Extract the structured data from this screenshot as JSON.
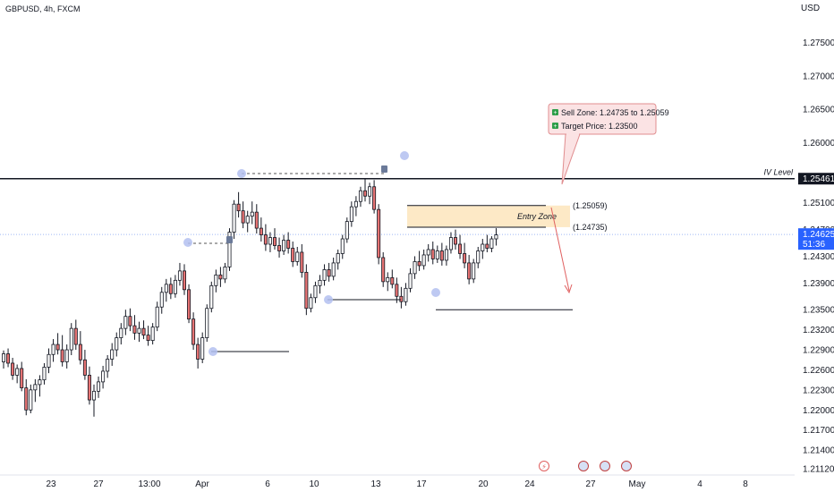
{
  "header": {
    "symbol_title": "GBPUSD, 4h, FXCM",
    "currency": "USD"
  },
  "price_axis": {
    "ticks": [
      "1.27500",
      "1.27000",
      "1.26500",
      "1.26000",
      "1.25100",
      "1.24700",
      "1.24300",
      "1.23900",
      "1.23500",
      "1.23200",
      "1.22900",
      "1.22600",
      "1.22300",
      "1.22000",
      "1.21700",
      "1.21400",
      "1.21120"
    ],
    "tick_values": [
      1.275,
      1.27,
      1.265,
      1.26,
      1.251,
      1.247,
      1.243,
      1.239,
      1.235,
      1.232,
      1.229,
      1.226,
      1.223,
      1.22,
      1.217,
      1.214,
      1.2112
    ]
  },
  "time_axis": {
    "ticks": [
      "23",
      "27",
      "13:00",
      "Apr",
      "6",
      "10",
      "13",
      "17",
      "20",
      "24",
      "27",
      "May",
      "4",
      "8"
    ]
  },
  "levels": {
    "iv_level": {
      "label": "IV Level",
      "price_label": "1.25461",
      "value": 1.25461
    },
    "current": {
      "price_label": "1.24625",
      "countdown": "51:36",
      "value": 1.24625
    },
    "zone_top_label": "(1.25059)",
    "zone_bottom_label": "(1.24735)",
    "zone_top": 1.25059,
    "zone_bottom": 1.24735,
    "entry_zone_label": "Entry Zone",
    "target": 1.235
  },
  "callout": {
    "line1": "Sell Zone: 1.24735 to 1.25059",
    "line2": "Target Price: 1.23500"
  },
  "colors": {
    "up": "#ffffff",
    "down": "#e57373",
    "wick": "#131722",
    "zone_fill": "#fde9c6",
    "callout_fill": "#fbe3e4",
    "callout_border": "#e08d8f",
    "current_badge": "#2962ff",
    "iv_badge": "#131722",
    "pivot_marker": "#b3bff0"
  },
  "chart_data": {
    "type": "candlestick",
    "symbol": "GBPUSD",
    "timeframe": "4h",
    "y_range": [
      1.2112,
      1.2776
    ],
    "ohlc": [
      [
        1.2272,
        1.2289,
        1.2262,
        1.2284
      ],
      [
        1.2284,
        1.2292,
        1.2264,
        1.227
      ],
      [
        1.227,
        1.2278,
        1.2245,
        1.2252
      ],
      [
        1.2252,
        1.2268,
        1.224,
        1.2262
      ],
      [
        1.2262,
        1.2272,
        1.2228,
        1.2233
      ],
      [
        1.2233,
        1.2246,
        1.2192,
        1.22
      ],
      [
        1.22,
        1.2238,
        1.2195,
        1.223
      ],
      [
        1.223,
        1.2246,
        1.2212,
        1.2238
      ],
      [
        1.2238,
        1.2252,
        1.222,
        1.2245
      ],
      [
        1.2245,
        1.227,
        1.2238,
        1.2264
      ],
      [
        1.2264,
        1.2292,
        1.2255,
        1.2283
      ],
      [
        1.2283,
        1.2306,
        1.2272,
        1.2298
      ],
      [
        1.2298,
        1.2315,
        1.2283,
        1.229
      ],
      [
        1.229,
        1.2312,
        1.2265,
        1.2272
      ],
      [
        1.2272,
        1.2298,
        1.2262,
        1.229
      ],
      [
        1.229,
        1.233,
        1.2282,
        1.2322
      ],
      [
        1.2322,
        1.2335,
        1.229,
        1.2298
      ],
      [
        1.2298,
        1.2318,
        1.2268,
        1.2275
      ],
      [
        1.2275,
        1.229,
        1.2245,
        1.2252
      ],
      [
        1.2252,
        1.2265,
        1.2208,
        1.2215
      ],
      [
        1.2215,
        1.2238,
        1.219,
        1.2228
      ],
      [
        1.2228,
        1.225,
        1.2218,
        1.2242
      ],
      [
        1.2242,
        1.2266,
        1.2232,
        1.2258
      ],
      [
        1.2258,
        1.2282,
        1.2248,
        1.2276
      ],
      [
        1.2276,
        1.23,
        1.2266,
        1.229
      ],
      [
        1.229,
        1.2316,
        1.228,
        1.2308
      ],
      [
        1.2308,
        1.233,
        1.2298,
        1.2322
      ],
      [
        1.2322,
        1.235,
        1.2312,
        1.234
      ],
      [
        1.234,
        1.2352,
        1.2318,
        1.2326
      ],
      [
        1.2326,
        1.2342,
        1.2305,
        1.2315
      ],
      [
        1.2315,
        1.2332,
        1.2302,
        1.2322
      ],
      [
        1.2322,
        1.2334,
        1.2306,
        1.2312
      ],
      [
        1.2312,
        1.2326,
        1.2296,
        1.2304
      ],
      [
        1.2304,
        1.233,
        1.2298,
        1.2324
      ],
      [
        1.2324,
        1.2362,
        1.2318,
        1.2354
      ],
      [
        1.2354,
        1.2384,
        1.2344,
        1.2376
      ],
      [
        1.2376,
        1.2396,
        1.2362,
        1.2388
      ],
      [
        1.2388,
        1.2398,
        1.2366,
        1.2374
      ],
      [
        1.2374,
        1.2402,
        1.2368,
        1.2394
      ],
      [
        1.2394,
        1.242,
        1.2386,
        1.2408
      ],
      [
        1.2408,
        1.2418,
        1.2372,
        1.238
      ],
      [
        1.238,
        1.2388,
        1.233,
        1.2336
      ],
      [
        1.2336,
        1.2346,
        1.229,
        1.2298
      ],
      [
        1.2298,
        1.2308,
        1.2262,
        1.2276
      ],
      [
        1.2276,
        1.2316,
        1.227,
        1.2308
      ],
      [
        1.2308,
        1.2358,
        1.2302,
        1.2352
      ],
      [
        1.2352,
        1.2392,
        1.2346,
        1.2386
      ],
      [
        1.2386,
        1.241,
        1.2376,
        1.2402
      ],
      [
        1.2402,
        1.2414,
        1.2384,
        1.2396
      ],
      [
        1.2396,
        1.242,
        1.239,
        1.2414
      ],
      [
        1.2414,
        1.2472,
        1.2408,
        1.2466
      ],
      [
        1.2466,
        1.2514,
        1.2456,
        1.2508
      ],
      [
        1.2508,
        1.2526,
        1.2488,
        1.2498
      ],
      [
        1.2498,
        1.2512,
        1.2472,
        1.248
      ],
      [
        1.248,
        1.2498,
        1.2466,
        1.249
      ],
      [
        1.249,
        1.2512,
        1.2478,
        1.2496
      ],
      [
        1.2496,
        1.2508,
        1.2464,
        1.2472
      ],
      [
        1.2472,
        1.2488,
        1.2452,
        1.2462
      ],
      [
        1.2462,
        1.2478,
        1.2438,
        1.2448
      ],
      [
        1.2448,
        1.2466,
        1.2436,
        1.2458
      ],
      [
        1.2458,
        1.2472,
        1.244,
        1.2446
      ],
      [
        1.2446,
        1.2458,
        1.2428,
        1.2438
      ],
      [
        1.2438,
        1.2462,
        1.2432,
        1.2454
      ],
      [
        1.2454,
        1.2466,
        1.2434,
        1.2442
      ],
      [
        1.2442,
        1.2452,
        1.2414,
        1.2422
      ],
      [
        1.2422,
        1.2444,
        1.2416,
        1.2436
      ],
      [
        1.2436,
        1.2448,
        1.2398,
        1.2406
      ],
      [
        1.2406,
        1.2418,
        1.2342,
        1.2352
      ],
      [
        1.2352,
        1.2374,
        1.2346,
        1.2368
      ],
      [
        1.2368,
        1.2392,
        1.236,
        1.2386
      ],
      [
        1.2386,
        1.2402,
        1.2374,
        1.2394
      ],
      [
        1.2394,
        1.2418,
        1.2386,
        1.241
      ],
      [
        1.241,
        1.242,
        1.2392,
        1.24
      ],
      [
        1.24,
        1.2428,
        1.2394,
        1.242
      ],
      [
        1.242,
        1.244,
        1.241,
        1.2434
      ],
      [
        1.2434,
        1.2462,
        1.2426,
        1.2456
      ],
      [
        1.2456,
        1.2488,
        1.245,
        1.2482
      ],
      [
        1.2482,
        1.2512,
        1.2474,
        1.2504
      ],
      [
        1.2504,
        1.252,
        1.249,
        1.2512
      ],
      [
        1.2512,
        1.2534,
        1.2504,
        1.2528
      ],
      [
        1.2528,
        1.2546,
        1.2512,
        1.252
      ],
      [
        1.252,
        1.254,
        1.2508,
        1.2534
      ],
      [
        1.2534,
        1.2544,
        1.2494,
        1.25
      ],
      [
        1.25,
        1.2508,
        1.2418,
        1.2428
      ],
      [
        1.2428,
        1.2436,
        1.2384,
        1.2392
      ],
      [
        1.2392,
        1.2406,
        1.2378,
        1.2398
      ],
      [
        1.2398,
        1.241,
        1.2382,
        1.2388
      ],
      [
        1.2388,
        1.2398,
        1.236,
        1.237
      ],
      [
        1.237,
        1.2384,
        1.2352,
        1.2362
      ],
      [
        1.2362,
        1.239,
        1.2356,
        1.2382
      ],
      [
        1.2382,
        1.2412,
        1.2376,
        1.2404
      ],
      [
        1.2404,
        1.243,
        1.2396,
        1.2422
      ],
      [
        1.2422,
        1.2438,
        1.2408,
        1.2416
      ],
      [
        1.2416,
        1.244,
        1.241,
        1.2432
      ],
      [
        1.2432,
        1.2448,
        1.2422,
        1.244
      ],
      [
        1.244,
        1.2452,
        1.2418,
        1.2426
      ],
      [
        1.2426,
        1.2446,
        1.242,
        1.2438
      ],
      [
        1.2438,
        1.245,
        1.2416,
        1.2424
      ],
      [
        1.2424,
        1.2446,
        1.2416,
        1.244
      ],
      [
        1.244,
        1.2466,
        1.2434,
        1.2458
      ],
      [
        1.2458,
        1.247,
        1.244,
        1.2448
      ],
      [
        1.2448,
        1.2462,
        1.2426,
        1.2434
      ],
      [
        1.2434,
        1.245,
        1.2412,
        1.242
      ],
      [
        1.242,
        1.2432,
        1.2388,
        1.2396
      ],
      [
        1.2396,
        1.2426,
        1.239,
        1.242
      ],
      [
        1.242,
        1.2444,
        1.2412,
        1.2438
      ],
      [
        1.2438,
        1.2456,
        1.2426,
        1.2448
      ],
      [
        1.2448,
        1.2462,
        1.2436,
        1.2442
      ],
      [
        1.2442,
        1.246,
        1.2436,
        1.2456
      ],
      [
        1.2456,
        1.2472,
        1.2446,
        1.2462
      ]
    ]
  }
}
